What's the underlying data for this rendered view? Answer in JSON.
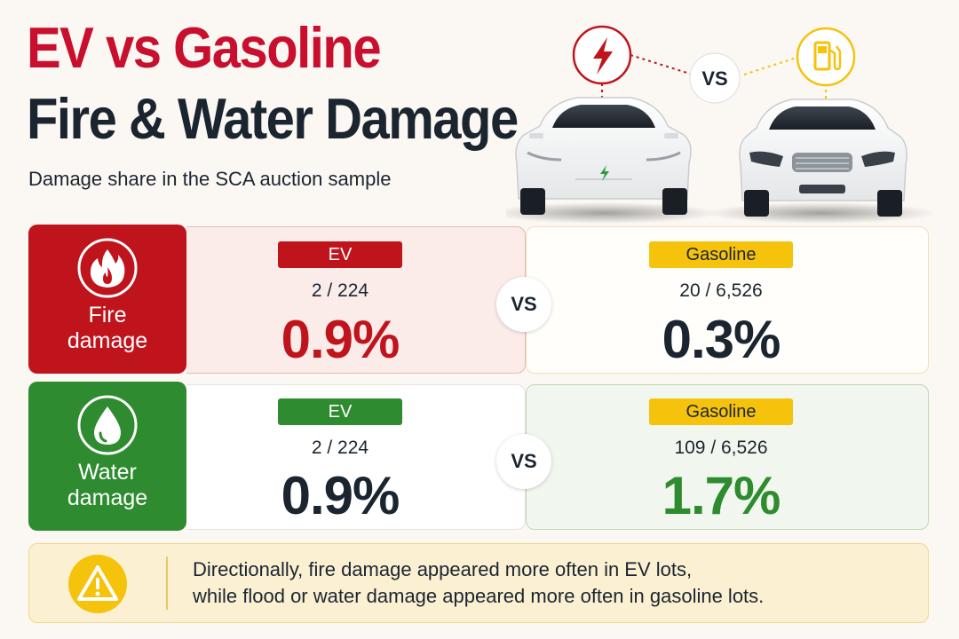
{
  "header": {
    "title_line1": "EV vs Gasoline",
    "title_line2": "Fire & Water Damage",
    "subtitle": "Damage share in the SCA auction sample"
  },
  "hero": {
    "vs_label": "VS",
    "ev_icon": "lightning-bolt-icon",
    "gas_icon": "fuel-pump-icon"
  },
  "rows": {
    "fire": {
      "label": "Fire damage",
      "icon": "flame-icon",
      "color": "#c0141c",
      "ev": {
        "tag": "EV",
        "count": "2 / 224",
        "percent": "0.9%"
      },
      "vs": "VS",
      "gas": {
        "tag": "Gasoline",
        "count": "20 / 6,526",
        "percent": "0.3%"
      }
    },
    "water": {
      "label": "Water damage",
      "icon": "water-drop-icon",
      "color": "#2e8b2f",
      "ev": {
        "tag": "EV",
        "count": "2 / 224",
        "percent": "0.9%"
      },
      "vs": "VS",
      "gas": {
        "tag": "Gasoline",
        "count": "109 / 6,526",
        "percent": "1.7%"
      }
    }
  },
  "note": {
    "icon": "warning-icon",
    "line1": "Directionally, fire damage appeared more often in EV lots,",
    "line2": "while flood or water damage appeared more often in gasoline lots."
  },
  "colors": {
    "fire_red": "#c0141c",
    "water_green": "#2e8b2f",
    "gas_yellow": "#f5c20c",
    "title_red": "#c8102e",
    "dark_text": "#1b2530"
  }
}
